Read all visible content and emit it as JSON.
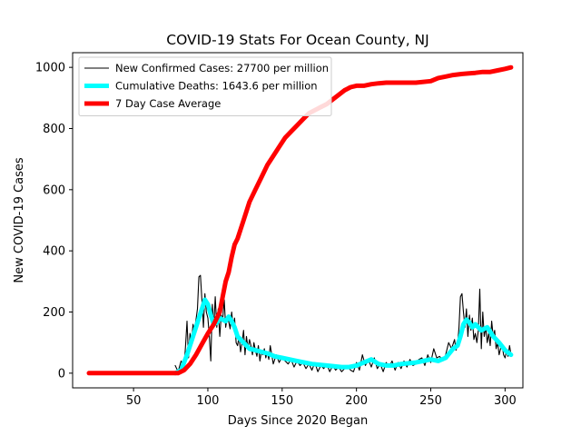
{
  "chart_data": {
    "type": "line",
    "title": "COVID-19 Stats For Ocean County, NJ",
    "xlabel": "Days Since 2020 Began",
    "ylabel": "New COVID-19 Cases",
    "xlim": [
      9,
      312
    ],
    "ylim": [
      -48,
      1048
    ],
    "xticks": [
      50,
      100,
      150,
      200,
      250,
      300
    ],
    "yticks": [
      0,
      200,
      400,
      600,
      800,
      1000
    ],
    "grid": false,
    "legend_position": "top-left",
    "series": [
      {
        "name": "New Confirmed Cases: 27700 per million",
        "color": "#000000",
        "x": [
          78,
          80,
          82,
          84,
          85,
          86,
          87,
          88,
          89,
          90,
          91,
          92,
          93,
          94,
          95,
          96,
          97,
          98,
          99,
          100,
          101,
          102,
          103,
          104,
          105,
          106,
          107,
          108,
          109,
          110,
          111,
          112,
          113,
          114,
          115,
          116,
          117,
          118,
          119,
          120,
          121,
          122,
          123,
          124,
          125,
          126,
          127,
          128,
          129,
          130,
          131,
          132,
          133,
          134,
          135,
          136,
          137,
          138,
          139,
          140,
          141,
          142,
          144,
          146,
          148,
          150,
          152,
          154,
          156,
          158,
          160,
          162,
          164,
          166,
          168,
          170,
          172,
          174,
          176,
          178,
          180,
          182,
          184,
          186,
          188,
          190,
          192,
          194,
          196,
          198,
          200,
          202,
          204,
          206,
          208,
          210,
          212,
          214,
          216,
          218,
          220,
          222,
          224,
          226,
          228,
          230,
          232,
          234,
          236,
          238,
          240,
          242,
          244,
          246,
          248,
          250,
          252,
          254,
          256,
          258,
          260,
          262,
          264,
          266,
          267,
          268,
          269,
          270,
          271,
          272,
          273,
          274,
          275,
          276,
          277,
          278,
          279,
          280,
          281,
          282,
          283,
          284,
          285,
          286,
          287,
          288,
          289,
          290,
          291,
          292,
          293,
          294,
          295,
          296,
          297,
          298,
          299,
          300,
          301,
          302,
          303,
          304
        ],
        "y": [
          25,
          5,
          40,
          20,
          90,
          170,
          50,
          130,
          100,
          160,
          140,
          175,
          210,
          315,
          320,
          240,
          150,
          260,
          200,
          180,
          120,
          40,
          225,
          150,
          250,
          150,
          210,
          120,
          190,
          175,
          240,
          150,
          180,
          170,
          145,
          200,
          150,
          180,
          100,
          90,
          120,
          70,
          100,
          140,
          60,
          120,
          80,
          110,
          90,
          60,
          100,
          75,
          55,
          90,
          40,
          70,
          60,
          80,
          50,
          70,
          45,
          90,
          30,
          60,
          35,
          55,
          40,
          30,
          45,
          20,
          40,
          25,
          35,
          15,
          30,
          10,
          35,
          5,
          25,
          15,
          30,
          5,
          25,
          10,
          20,
          5,
          15,
          25,
          10,
          5,
          35,
          10,
          60,
          25,
          45,
          20,
          50,
          15,
          30,
          5,
          35,
          20,
          40,
          10,
          35,
          15,
          40,
          20,
          45,
          25,
          30,
          45,
          50,
          25,
          60,
          35,
          80,
          50,
          55,
          40,
          60,
          100,
          80,
          110,
          75,
          90,
          150,
          250,
          260,
          200,
          150,
          210,
          120,
          190,
          140,
          180,
          110,
          130,
          100,
          140,
          275,
          80,
          200,
          120,
          150,
          100,
          130,
          90,
          170,
          120,
          140,
          80,
          100,
          60,
          80,
          95,
          60,
          50,
          75,
          55,
          90,
          60
        ]
      },
      {
        "name": "Cumulative Deaths: 1643.6 per million",
        "color": "#00ffff",
        "x": [
          78,
          82,
          86,
          90,
          94,
          96,
          98,
          100,
          102,
          104,
          106,
          108,
          110,
          112,
          114,
          116,
          118,
          120,
          124,
          128,
          132,
          136,
          140,
          145,
          150,
          160,
          170,
          180,
          190,
          195,
          200,
          205,
          210,
          215,
          220,
          225,
          230,
          240,
          250,
          255,
          260,
          265,
          268,
          270,
          272,
          274,
          276,
          278,
          280,
          284,
          288,
          292,
          296,
          300,
          304
        ],
        "y": [
          0,
          10,
          60,
          120,
          180,
          210,
          240,
          225,
          190,
          160,
          165,
          180,
          175,
          170,
          185,
          170,
          150,
          120,
          100,
          80,
          75,
          70,
          65,
          55,
          50,
          40,
          30,
          25,
          20,
          20,
          25,
          35,
          45,
          30,
          25,
          25,
          30,
          35,
          45,
          40,
          50,
          80,
          90,
          120,
          160,
          175,
          165,
          150,
          160,
          140,
          150,
          120,
          100,
          75,
          60
        ]
      },
      {
        "name": "7 Day Case Average",
        "color": "#ff0000",
        "x": [
          20,
          30,
          40,
          50,
          60,
          70,
          80,
          84,
          88,
          92,
          96,
          100,
          104,
          108,
          110,
          112,
          114,
          116,
          118,
          120,
          124,
          128,
          132,
          136,
          140,
          144,
          148,
          152,
          156,
          160,
          164,
          168,
          172,
          176,
          180,
          184,
          188,
          192,
          196,
          200,
          205,
          210,
          215,
          220,
          230,
          240,
          250,
          255,
          260,
          265,
          270,
          275,
          280,
          285,
          290,
          295,
          300,
          304
        ],
        "y": [
          0,
          0,
          0,
          0,
          0,
          0,
          0,
          10,
          30,
          60,
          95,
          130,
          160,
          200,
          250,
          300,
          330,
          380,
          420,
          440,
          500,
          560,
          600,
          640,
          680,
          710,
          740,
          770,
          790,
          810,
          830,
          850,
          860,
          870,
          880,
          895,
          910,
          925,
          935,
          940,
          940,
          945,
          948,
          950,
          950,
          950,
          955,
          965,
          970,
          975,
          978,
          980,
          982,
          985,
          985,
          990,
          995,
          1000
        ]
      }
    ]
  }
}
